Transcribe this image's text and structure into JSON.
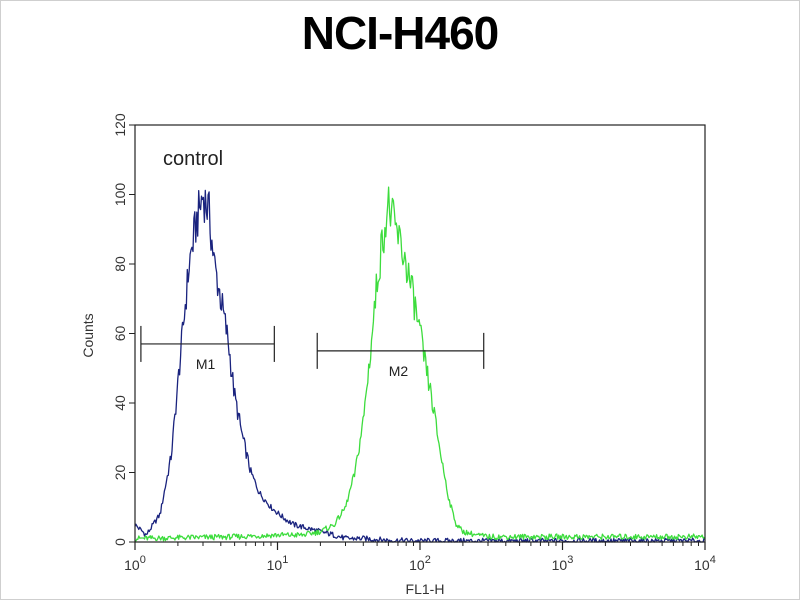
{
  "chart_data": {
    "type": "line",
    "title": "NCI-H460",
    "xlabel": "FL1-H",
    "ylabel": "Counts",
    "xscale": "log",
    "xlim": [
      1,
      10000
    ],
    "ylim": [
      0,
      120
    ],
    "y_ticks": [
      "0",
      "20",
      "40",
      "60",
      "80",
      "100",
      "120"
    ],
    "x_ticks": [
      {
        "base": "10",
        "exp": "0"
      },
      {
        "base": "10",
        "exp": "1"
      },
      {
        "base": "10",
        "exp": "2"
      },
      {
        "base": "10",
        "exp": "3"
      },
      {
        "base": "10",
        "exp": "4"
      }
    ],
    "annotation": "control",
    "colors": {
      "control": "#1a237e",
      "sample": "#3ddc3d"
    },
    "series": [
      {
        "color": "#1a237e",
        "x": [
          1.0,
          1.2,
          1.5,
          1.8,
          2.1,
          2.4,
          2.7,
          3.0,
          3.3,
          3.6,
          4.0,
          4.5,
          5.0,
          5.7,
          6.5,
          7.5,
          9.0,
          11,
          13,
          16,
          20,
          25,
          30,
          40,
          60,
          100,
          200,
          10000
        ],
        "y": [
          5,
          2,
          8,
          25,
          55,
          80,
          92,
          100,
          95,
          80,
          70,
          58,
          42,
          30,
          20,
          14,
          10,
          7,
          5,
          4,
          3,
          2,
          1,
          1,
          0.5,
          0.3,
          0.3,
          0.3
        ]
      },
      {
        "color": "#3ddc3d",
        "x": [
          1.0,
          5,
          10,
          15,
          20,
          25,
          30,
          35,
          40,
          45,
          50,
          55,
          60,
          65,
          70,
          80,
          90,
          100,
          110,
          120,
          140,
          160,
          180,
          200,
          250,
          300,
          400,
          1000,
          10000
        ],
        "y": [
          1,
          1.5,
          2,
          2,
          3,
          5,
          10,
          20,
          35,
          55,
          75,
          88,
          97,
          92,
          88,
          80,
          70,
          60,
          50,
          42,
          25,
          12,
          5,
          3,
          2,
          1.5,
          1.5,
          1.5,
          1.5
        ]
      }
    ],
    "markers": [
      {
        "label": "M1",
        "x_start": 1.1,
        "x_end": 9.5,
        "y": 57
      },
      {
        "label": "M2",
        "x_start": 19,
        "x_end": 280,
        "y": 55
      }
    ]
  }
}
